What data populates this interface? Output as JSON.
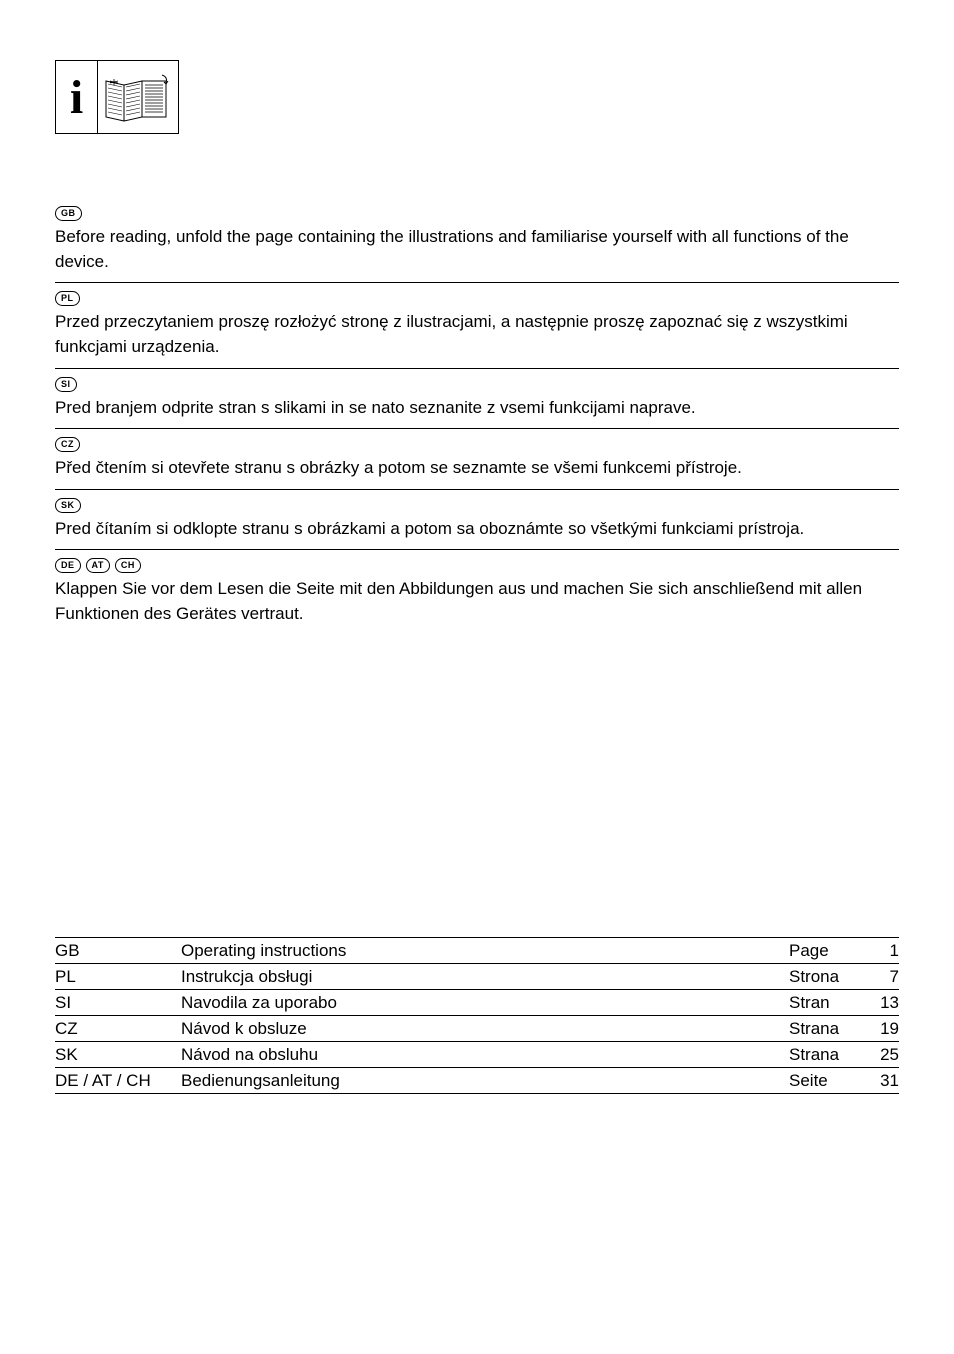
{
  "blocks": [
    {
      "badges": [
        "GB"
      ],
      "text": "Before reading, unfold the page containing the illustrations and familiarise yourself with all functions of the device."
    },
    {
      "badges": [
        "PL"
      ],
      "text": "Przed przeczytaniem proszę rozłożyć stronę z ilustracjami, a następnie proszę zapoznać się z wszystkimi funkcjami urządzenia."
    },
    {
      "badges": [
        "SI"
      ],
      "text": "Pred branjem odprite stran s slikami in se nato seznanite z vsemi funkcijami naprave."
    },
    {
      "badges": [
        "CZ"
      ],
      "text": "Před čtením si otevřete stranu s obrázky a potom se seznamte se všemi funkcemi přístroje."
    },
    {
      "badges": [
        "SK"
      ],
      "text": "Pred čítaním si odklopte stranu s obrázkami a potom sa oboznámte so všetkými funkciami prístroja."
    },
    {
      "badges": [
        "DE",
        "AT",
        "CH"
      ],
      "text": "Klappen Sie vor dem Lesen die Seite mit den Abbildungen aus und machen Sie sich anschließend mit allen Funktionen des Gerätes vertraut."
    }
  ],
  "toc": [
    {
      "code": "GB",
      "title": "Operating instructions",
      "pagelabel": "Page",
      "pagenum": "1"
    },
    {
      "code": "PL",
      "title": "Instrukcja obsługi",
      "pagelabel": "Strona",
      "pagenum": "7"
    },
    {
      "code": "SI",
      "title": "Navodila za uporabo",
      "pagelabel": "Stran",
      "pagenum": "13"
    },
    {
      "code": "CZ",
      "title": "Návod k obsluze",
      "pagelabel": "Strana",
      "pagenum": "19"
    },
    {
      "code": "SK",
      "title": "Návod na obsluhu",
      "pagelabel": "Strana",
      "pagenum": "25"
    },
    {
      "code": "DE / AT / CH",
      "title": "Bedienungsanleitung",
      "pagelabel": "Seite",
      "pagenum": "31"
    }
  ]
}
